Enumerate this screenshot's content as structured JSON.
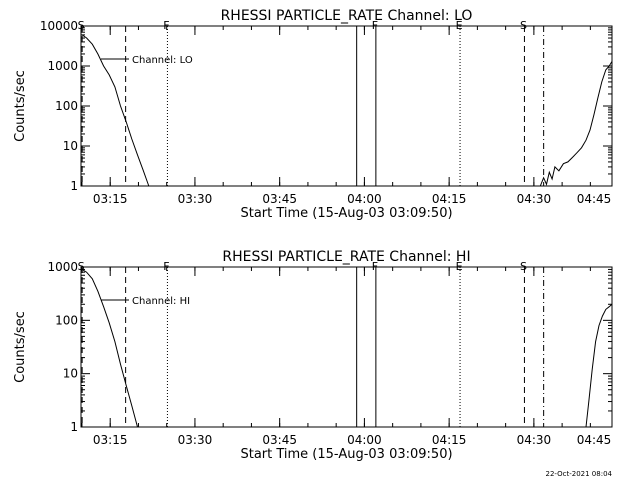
{
  "chart_data": [
    {
      "type": "line",
      "title": "RHESSI PARTICLE_RATE Channel: LO",
      "xlabel": "Start Time (15-Aug-03 03:09:50)",
      "ylabel": "Counts/sec",
      "x_units": "minutes after 03:09:50",
      "x_range": [
        0,
        94
      ],
      "xticks": [
        {
          "label": "03:15",
          "value": 5.17
        },
        {
          "label": "03:30",
          "value": 20.17
        },
        {
          "label": "03:45",
          "value": 35.17
        },
        {
          "label": "04:00",
          "value": 50.17
        },
        {
          "label": "04:15",
          "value": 65.17
        },
        {
          "label": "04:30",
          "value": 80.17
        },
        {
          "label": "04:45",
          "value": 95.17
        }
      ],
      "yscale": "log",
      "ylim": [
        1,
        10000
      ],
      "yticks": [
        {
          "label": "1",
          "value": 1
        },
        {
          "label": "10",
          "value": 10
        },
        {
          "label": "100",
          "value": 100
        },
        {
          "label": "1000",
          "value": 1000
        },
        {
          "label": "10000",
          "value": 10000
        }
      ],
      "legend": {
        "label": "Channel: LO",
        "placement": "top-left"
      },
      "series": [
        {
          "name": "Channel: LO",
          "points": [
            [
              0.2,
              6000
            ],
            [
              1.0,
              5000
            ],
            [
              2.0,
              3500
            ],
            [
              3.0,
              2000
            ],
            [
              4.0,
              1000
            ],
            [
              5.0,
              600
            ],
            [
              6.0,
              300
            ],
            [
              7.0,
              100
            ],
            [
              8.0,
              40
            ],
            [
              9.0,
              15
            ],
            [
              10.0,
              6
            ],
            [
              11.0,
              2.5
            ],
            [
              12.0,
              1
            ]
          ]
        },
        {
          "name": "Channel: LO",
          "points": [
            [
              81.3,
              1
            ],
            [
              81.9,
              1.6
            ],
            [
              82.4,
              1.1
            ],
            [
              82.9,
              2.2
            ],
            [
              83.4,
              1.5
            ],
            [
              83.9,
              3
            ],
            [
              84.6,
              2.4
            ],
            [
              85.4,
              3.6
            ],
            [
              86.2,
              4
            ],
            [
              87.0,
              5.2
            ],
            [
              87.8,
              6.8
            ],
            [
              88.6,
              9
            ],
            [
              89.4,
              14
            ],
            [
              90.1,
              25
            ],
            [
              90.8,
              60
            ],
            [
              91.5,
              160
            ],
            [
              92.2,
              400
            ],
            [
              92.9,
              800
            ],
            [
              93.5,
              1000
            ],
            [
              94.0,
              1300
            ]
          ]
        }
      ],
      "markers": [
        {
          "label": "S",
          "x": 0.2,
          "style": "dashed"
        },
        {
          "label": "",
          "x": 7.9,
          "style": "dashed"
        },
        {
          "label": "F",
          "x": 15.3,
          "style": "dotted"
        },
        {
          "label": "",
          "x": 48.8,
          "style": "solid"
        },
        {
          "label": "F",
          "x": 52.2,
          "style": "solid"
        },
        {
          "label": "E",
          "x": 67.1,
          "style": "dotted"
        },
        {
          "label": "S",
          "x": 78.5,
          "style": "dashed"
        },
        {
          "label": "",
          "x": 81.9,
          "style": "dashdot"
        }
      ]
    },
    {
      "type": "line",
      "title": "RHESSI PARTICLE_RATE Channel: HI",
      "xlabel": "Start Time (15-Aug-03 03:09:50)",
      "ylabel": "Counts/sec",
      "x_units": "minutes after 03:09:50",
      "x_range": [
        0,
        94
      ],
      "xticks": [
        {
          "label": "03:15",
          "value": 5.17
        },
        {
          "label": "03:30",
          "value": 20.17
        },
        {
          "label": "03:45",
          "value": 35.17
        },
        {
          "label": "04:00",
          "value": 50.17
        },
        {
          "label": "04:15",
          "value": 65.17
        },
        {
          "label": "04:30",
          "value": 80.17
        },
        {
          "label": "04:45",
          "value": 95.17
        }
      ],
      "yscale": "log",
      "ylim": [
        1,
        1000
      ],
      "yticks": [
        {
          "label": "1",
          "value": 1
        },
        {
          "label": "10",
          "value": 10
        },
        {
          "label": "100",
          "value": 100
        },
        {
          "label": "1000",
          "value": 1000
        }
      ],
      "legend": {
        "label": "Channel: HI",
        "placement": "top-left"
      },
      "series": [
        {
          "name": "Channel: HI",
          "points": [
            [
              0.2,
              900
            ],
            [
              1.0,
              800
            ],
            [
              2.0,
              600
            ],
            [
              3.0,
              350
            ],
            [
              4.0,
              180
            ],
            [
              5.0,
              90
            ],
            [
              6.0,
              40
            ],
            [
              7.0,
              15
            ],
            [
              8.0,
              6
            ],
            [
              9.0,
              2.5
            ],
            [
              10.0,
              1
            ]
          ]
        },
        {
          "name": "Channel: HI",
          "points": [
            [
              89.4,
              1
            ],
            [
              89.9,
              3
            ],
            [
              90.5,
              12
            ],
            [
              91.1,
              40
            ],
            [
              91.7,
              80
            ],
            [
              92.3,
              120
            ],
            [
              92.9,
              160
            ],
            [
              93.5,
              180
            ],
            [
              94.0,
              200
            ]
          ]
        }
      ],
      "markers": [
        {
          "label": "S",
          "x": 0.2,
          "style": "dashed"
        },
        {
          "label": "",
          "x": 7.9,
          "style": "dashed"
        },
        {
          "label": "F",
          "x": 15.3,
          "style": "dotted"
        },
        {
          "label": "",
          "x": 48.8,
          "style": "solid"
        },
        {
          "label": "F",
          "x": 52.2,
          "style": "solid"
        },
        {
          "label": "E",
          "x": 67.1,
          "style": "dotted"
        },
        {
          "label": "S",
          "x": 78.5,
          "style": "dashed"
        },
        {
          "label": "",
          "x": 81.9,
          "style": "dashdot"
        }
      ]
    }
  ],
  "footer": {
    "date_stamp": "22-Oct-2021 08:04"
  }
}
